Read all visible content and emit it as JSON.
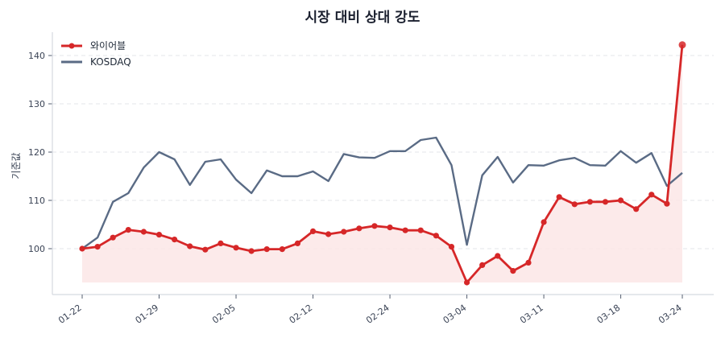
{
  "chart_data": {
    "type": "line",
    "title": "시장 대비 상대 강도",
    "xlabel": "",
    "ylabel": "기준값",
    "ylim": [
      91,
      145
    ],
    "yticks": [
      100,
      110,
      120,
      130,
      140
    ],
    "grid": true,
    "legend_position": "upper left",
    "x_tick_labels": [
      "01-22",
      "01-29",
      "02-05",
      "02-12",
      "02-24",
      "03-04",
      "03-11",
      "03-18",
      "03-24"
    ],
    "x_tick_indices": [
      0,
      5,
      10,
      15,
      20,
      25,
      30,
      35,
      39
    ],
    "x": [
      "01-22",
      "01-23",
      "01-24",
      "01-25",
      "01-26",
      "01-29",
      "01-30",
      "01-31",
      "02-01",
      "02-02",
      "02-05",
      "02-06",
      "02-07",
      "02-08",
      "02-09",
      "02-12",
      "02-13",
      "02-14",
      "02-15",
      "02-16",
      "02-24",
      "02-25",
      "02-26",
      "02-27",
      "02-28",
      "03-04",
      "03-05",
      "03-06",
      "03-07",
      "03-08",
      "03-11",
      "03-12",
      "03-13",
      "03-14",
      "03-15",
      "03-18",
      "03-19",
      "03-20",
      "03-21",
      "03-24"
    ],
    "series": [
      {
        "name": "와이어블",
        "color": "#d62728",
        "marker": "circle",
        "fill": true,
        "fill_color": "#fbe6e6",
        "values": [
          100.0,
          100.4,
          102.3,
          103.9,
          103.5,
          102.9,
          101.9,
          100.5,
          99.8,
          101.1,
          100.2,
          99.5,
          99.9,
          99.9,
          101.1,
          103.6,
          103.0,
          103.5,
          104.2,
          104.7,
          104.4,
          103.8,
          103.8,
          102.7,
          100.4,
          93.0,
          96.6,
          98.5,
          95.4,
          97.1,
          105.5,
          110.7,
          109.2,
          109.7,
          109.7,
          110.0,
          108.2,
          111.2,
          109.3,
          142.2
        ]
      },
      {
        "name": "KOSDAQ",
        "color": "#5a6b85",
        "marker": "none",
        "fill": false,
        "values": [
          100.0,
          102.3,
          109.7,
          111.5,
          116.8,
          120.0,
          118.5,
          113.2,
          118.0,
          118.5,
          114.3,
          111.5,
          116.2,
          115.0,
          115.0,
          116.0,
          114.0,
          119.6,
          118.9,
          118.8,
          120.2,
          120.2,
          122.5,
          123.0,
          117.3,
          100.8,
          115.2,
          119.0,
          113.7,
          117.3,
          117.2,
          118.3,
          118.8,
          117.3,
          117.2,
          120.2,
          117.8,
          119.8,
          113.0,
          115.7
        ]
      }
    ]
  }
}
